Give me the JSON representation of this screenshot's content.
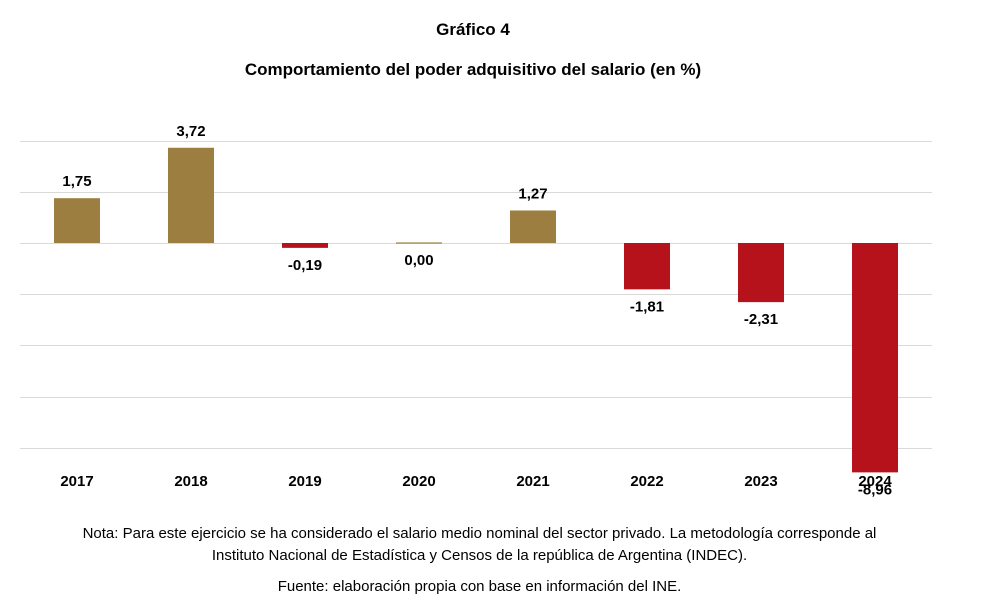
{
  "header": {
    "chart_number": "Gráfico 4",
    "title": "Comportamiento del poder adquisitivo del salario (en %)"
  },
  "chart_data": {
    "type": "bar",
    "title": "Comportamiento del poder adquisitivo del salario (en %)",
    "xlabel": "",
    "ylabel": "",
    "categories": [
      "2017",
      "2018",
      "2019",
      "2020",
      "2021",
      "2022",
      "2023",
      "2024"
    ],
    "values": [
      1.75,
      3.72,
      -0.19,
      0.0,
      1.27,
      -1.81,
      -2.31,
      -8.96
    ],
    "data_labels": [
      "1,75",
      "3,72",
      "-0,19",
      "0,00",
      "1,27",
      "-1,81",
      "-2,31",
      "-8,96"
    ],
    "ylim": [
      -8,
      4
    ],
    "grid": true,
    "legend": "none",
    "colors": {
      "positive": "#9c7e40",
      "negative": "#b5121b",
      "grid": "#d9d9d9"
    }
  },
  "footer": {
    "note_line1": "Nota: Para este ejercicio se ha considerado el salario medio nominal del sector privado. La metodología corresponde al",
    "note_line2": "Instituto Nacional de Estadística y Censos de la república de Argentina (INDEC).",
    "source": "Fuente: elaboración propia con base en información del INE."
  }
}
